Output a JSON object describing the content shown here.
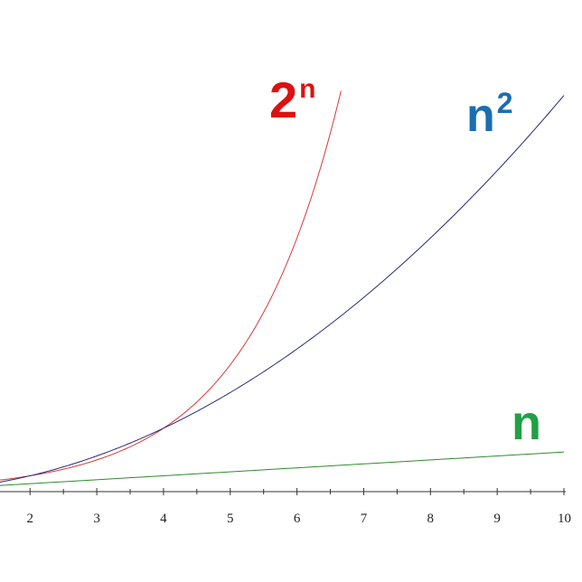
{
  "chart_data": {
    "type": "line",
    "xlim": [
      1.55,
      10
    ],
    "ylim": [
      0,
      104
    ],
    "x_ticks": [
      "2",
      "3",
      "4",
      "5",
      "6",
      "7",
      "8",
      "9",
      "10"
    ],
    "grid": false,
    "legend": "none",
    "series": [
      {
        "name": "2ⁿ",
        "base": "2",
        "sup": "n",
        "formula": "2^n",
        "color": "#d93a3a",
        "label_color": "#dd1111",
        "x": [
          1.55,
          2,
          2.5,
          3,
          3.5,
          4,
          4.5,
          5,
          5.5,
          6,
          6.5,
          6.66
        ],
        "values": [
          2.93,
          4,
          5.66,
          8,
          11.31,
          16,
          22.63,
          32,
          45.25,
          64,
          90.51,
          101.1
        ]
      },
      {
        "name": "n²",
        "base": "n",
        "sup": "2",
        "formula": "n^2",
        "color": "#2a2a7a",
        "label_color": "#1a6eb0",
        "x": [
          1.55,
          2,
          3,
          4,
          5,
          6,
          7,
          8,
          9,
          10
        ],
        "values": [
          2.4,
          4,
          9,
          16,
          25,
          36,
          49,
          64,
          81,
          100
        ]
      },
      {
        "name": "n",
        "base": "n",
        "sup": "",
        "formula": "n",
        "color": "#2e8b2e",
        "label_color": "#22a046",
        "x": [
          1.55,
          10
        ],
        "values": [
          1.55,
          10
        ]
      }
    ]
  }
}
